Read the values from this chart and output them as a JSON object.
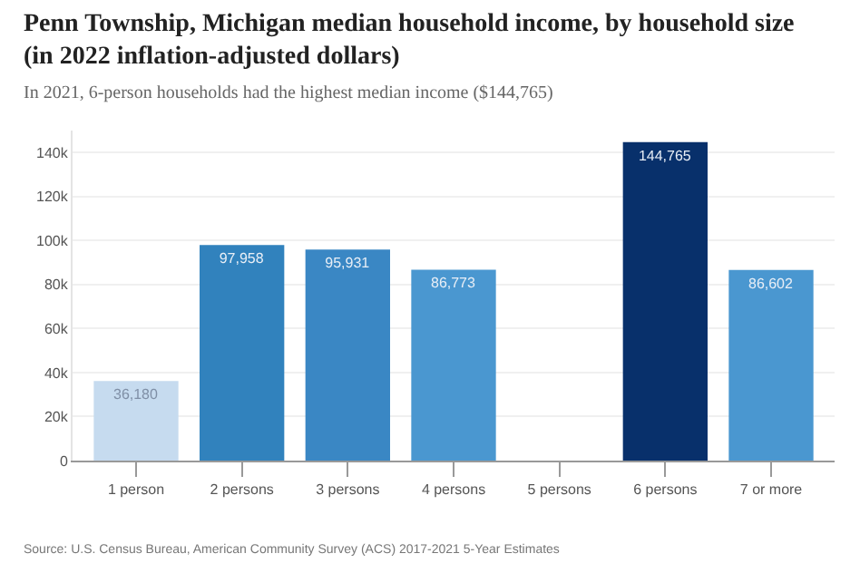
{
  "chart_data": {
    "type": "bar",
    "title": "Penn Township, Michigan median household income, by household size\n(in 2022 inflation-adjusted dollars)",
    "subtitle": "In 2021, 6-person households had the highest median income ($144,765)",
    "categories": [
      "1 person",
      "2 persons",
      "3 persons",
      "4 persons",
      "5 persons",
      "6 persons",
      "7 or more"
    ],
    "values": [
      36180,
      97958,
      95931,
      86773,
      null,
      144765,
      86602
    ],
    "value_labels": [
      "36,180",
      "97,958",
      "95,931",
      "86,773",
      null,
      "144,765",
      "86,602"
    ],
    "colors": [
      "#c6dbef",
      "#3182bd",
      "#3a87c4",
      "#4a97d0",
      "#4a97d0",
      "#08306b",
      "#4a97d0"
    ],
    "ylim": [
      0,
      150000
    ],
    "yticks": [
      0,
      {
        "value": 20000,
        "label": "20k"
      },
      {
        "value": 40000,
        "label": "40k"
      },
      {
        "value": 60000,
        "label": "60k"
      },
      {
        "value": 80000,
        "label": "80k"
      },
      {
        "value": 100000,
        "label": "100k"
      },
      {
        "value": 120000,
        "label": "120k"
      },
      {
        "value": 140000,
        "label": "140k"
      }
    ],
    "grid": "y",
    "annotations": [
      "Source: U.S. Census Bureau, American Community Survey (ACS) 2017-2021 5-Year Estimates"
    ]
  }
}
